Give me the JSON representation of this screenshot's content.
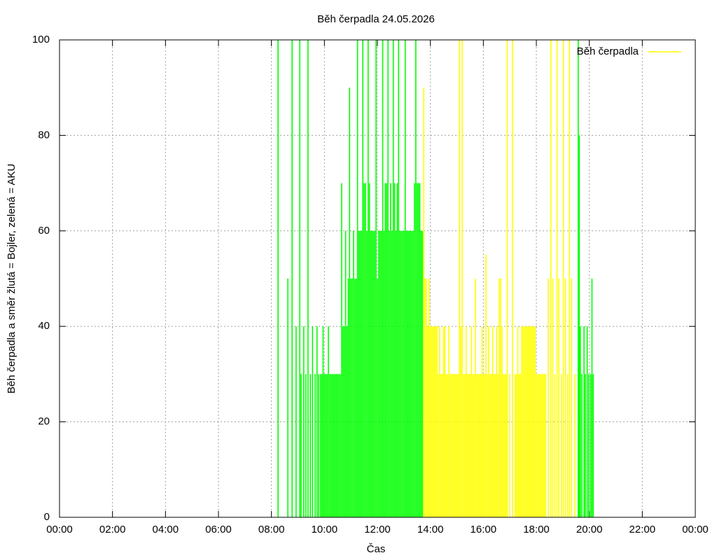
{
  "chart_data": {
    "type": "impulse",
    "title": "Běh čerpadla 24.05.2026",
    "xlabel": "Čas",
    "ylabel": "Běh čerpadla a směr žlutá = Bojler, zelená = AKU",
    "xlim": [
      0,
      24
    ],
    "ylim": [
      0,
      100
    ],
    "xticks": [
      {
        "value": 0,
        "label": "00:00"
      },
      {
        "value": 2,
        "label": "02:00"
      },
      {
        "value": 4,
        "label": "04:00"
      },
      {
        "value": 6,
        "label": "06:00"
      },
      {
        "value": 8,
        "label": "08:00"
      },
      {
        "value": 10,
        "label": "10:00"
      },
      {
        "value": 12,
        "label": "12:00"
      },
      {
        "value": 14,
        "label": "14:00"
      },
      {
        "value": 16,
        "label": "16:00"
      },
      {
        "value": 18,
        "label": "18:00"
      },
      {
        "value": 20,
        "label": "20:00"
      },
      {
        "value": 22,
        "label": "22:00"
      },
      {
        "value": 24,
        "label": "00:00"
      }
    ],
    "yticks": [
      0,
      20,
      40,
      60,
      80,
      100
    ],
    "grid": true,
    "legend": "top-right",
    "series": [
      {
        "name": "Běh čerpadla",
        "color": "#ffff00",
        "x": [
          13.75,
          13.8,
          13.85,
          13.9,
          13.95,
          14,
          14.05,
          14.1,
          14.15,
          14.2,
          14.25,
          14.3,
          14.35,
          14.4,
          14.45,
          14.5,
          14.55,
          14.6,
          14.65,
          14.7,
          14.75,
          14.8,
          14.85,
          14.9,
          14.95,
          15,
          15.05,
          15.1,
          15.15,
          15.2,
          15.25,
          15.3,
          15.35,
          15.4,
          15.45,
          15.5,
          15.55,
          15.6,
          15.65,
          15.7,
          15.75,
          15.8,
          15.85,
          15.9,
          15.95,
          16,
          16.05,
          16.1,
          16.15,
          16.2,
          16.25,
          16.3,
          16.35,
          16.4,
          16.45,
          16.5,
          16.55,
          16.6,
          16.65,
          16.7,
          16.75,
          16.8,
          16.85,
          16.9,
          17,
          17.1,
          17.2,
          17.25,
          17.3,
          17.35,
          17.4,
          17.45,
          17.5,
          17.55,
          17.6,
          17.65,
          17.7,
          17.75,
          17.8,
          17.85,
          17.9,
          17.95,
          18,
          18.05,
          18.1,
          18.15,
          18.2,
          18.25,
          18.3,
          18.35,
          18.45,
          18.55,
          18.62,
          18.7,
          18.78,
          18.85,
          18.95,
          19.02,
          19.1,
          19.18,
          19.25,
          19.33,
          19.45
        ],
        "values": [
          90,
          50,
          50,
          40,
          50,
          40,
          40,
          40,
          40,
          40,
          40,
          30,
          40,
          30,
          30,
          40,
          40,
          30,
          30,
          40,
          30,
          30,
          30,
          30,
          30,
          30,
          30,
          100,
          40,
          100,
          30,
          30,
          40,
          30,
          30,
          30,
          40,
          30,
          30,
          50,
          30,
          30,
          30,
          30,
          40,
          30,
          30,
          55,
          30,
          40,
          30,
          30,
          40,
          30,
          30,
          40,
          30,
          50,
          50,
          40,
          30,
          30,
          30,
          100,
          30,
          100,
          30,
          30,
          40,
          30,
          30,
          40,
          40,
          40,
          40,
          40,
          40,
          40,
          40,
          40,
          40,
          40,
          30,
          30,
          30,
          30,
          30,
          30,
          30,
          30,
          50,
          100,
          50,
          30,
          100,
          50,
          30,
          100,
          50,
          30,
          100,
          50,
          30
        ]
      },
      {
        "color": "#00ff00",
        "x": [
          8.25,
          8.62,
          8.78,
          8.93,
          9.07,
          9.12,
          9.22,
          9.3,
          9.38,
          9.47,
          9.55,
          9.65,
          9.72,
          9.78,
          9.85,
          9.9,
          9.95,
          10,
          10.05,
          10.1,
          10.15,
          10.2,
          10.25,
          10.3,
          10.35,
          10.4,
          10.45,
          10.5,
          10.55,
          10.6,
          10.65,
          10.7,
          10.75,
          10.8,
          10.85,
          10.9,
          10.95,
          11,
          11.05,
          11.1,
          11.15,
          11.2,
          11.25,
          11.3,
          11.35,
          11.4,
          11.45,
          11.5,
          11.55,
          11.6,
          11.65,
          11.7,
          11.75,
          11.8,
          11.85,
          11.9,
          11.95,
          12,
          12.05,
          12.1,
          12.15,
          12.2,
          12.25,
          12.3,
          12.35,
          12.4,
          12.45,
          12.5,
          12.55,
          12.6,
          12.65,
          12.7,
          12.75,
          12.8,
          12.85,
          12.9,
          12.95,
          13,
          13.05,
          13.1,
          13.15,
          13.2,
          13.25,
          13.3,
          13.35,
          13.4,
          13.45,
          13.5,
          13.55,
          13.6,
          13.65,
          13.7,
          19.58,
          19.62,
          19.66,
          19.72,
          19.8,
          19.85,
          19.92,
          19.98,
          20.05,
          20.1,
          20.15
        ],
        "values": [
          100,
          50,
          100,
          40,
          100,
          30,
          40,
          30,
          100,
          30,
          40,
          30,
          40,
          30,
          30,
          30,
          40,
          30,
          30,
          30,
          40,
          30,
          30,
          30,
          30,
          30,
          30,
          30,
          30,
          30,
          70,
          40,
          40,
          60,
          40,
          50,
          90,
          50,
          50,
          60,
          50,
          50,
          100,
          60,
          60,
          60,
          100,
          70,
          70,
          60,
          100,
          70,
          60,
          60,
          60,
          60,
          100,
          50,
          60,
          60,
          60,
          100,
          60,
          70,
          70,
          100,
          60,
          70,
          60,
          100,
          70,
          60,
          70,
          100,
          60,
          60,
          60,
          60,
          100,
          60,
          60,
          60,
          60,
          60,
          60,
          70,
          100,
          70,
          70,
          70,
          60,
          60,
          100,
          80,
          40,
          30,
          40,
          30,
          40,
          30,
          30,
          50,
          30
        ]
      }
    ]
  }
}
